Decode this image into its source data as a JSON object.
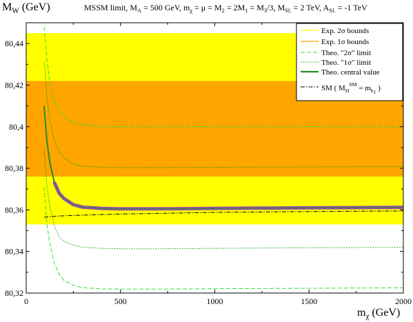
{
  "chart_data": {
    "type": "line",
    "title": "MSSM limit, M_A = 500 GeV, m_χ = μ = M_2 = 2M_1 = M_3/3, M_Sf. = 2 TeV, A_Sf. = -1 TeV",
    "title_parts": {
      "prefix": "MSSM limit, M",
      "ma_sub": "A",
      "ma_val": " = 500 GeV, m",
      "chi_sub": "χ",
      "mid": " = μ = M",
      "m2_sub": "2",
      "m2_val": " = 2M",
      "m1_sub": "1",
      "m1_val": " = M",
      "m3_sub": "3",
      "m3_val": "/3, M",
      "msf_sub": "Sf.",
      "msf_val": " = 2 TeV, A",
      "asf_sub": "Sf.",
      "asf_val": " = -1 TeV"
    },
    "ylabel": "M_W (GeV)",
    "ylabel_parts": {
      "main": "M",
      "sub": "W",
      "unit": " (GeV)"
    },
    "xlabel": "m_χ (GeV)",
    "xlabel_parts": {
      "main": "m",
      "sub": "χ",
      "unit": " (GeV)"
    },
    "xlim": [
      0,
      2000
    ],
    "ylim": [
      80.32,
      80.45
    ],
    "xticks": [
      0,
      500,
      1000,
      1500,
      2000
    ],
    "xtick_labels": [
      "0",
      "500",
      "1000",
      "1500",
      "2000"
    ],
    "yticks": [
      80.32,
      80.34,
      80.36,
      80.38,
      80.4,
      80.42,
      80.44
    ],
    "ytick_labels": [
      "80,32",
      "80,34",
      "80,36",
      "80,38",
      "80,4",
      "80,42",
      "80,44"
    ],
    "grid": false,
    "legend_position": "top-right",
    "bands": {
      "exp_2sigma": [
        80.353,
        80.445
      ],
      "exp_1sigma": [
        80.376,
        80.422
      ]
    },
    "legend": [
      {
        "key": "exp2",
        "label": "Exp. 2σ bounds"
      },
      {
        "key": "exp1",
        "label": "Exp. 1σ bounds"
      },
      {
        "key": "theo2",
        "label": "Theo. \"2σ\" limit"
      },
      {
        "key": "theo1",
        "label": "Theo. \"1σ\" limit"
      },
      {
        "key": "central",
        "label": "Theo. central value"
      },
      {
        "key": "sm",
        "label_main": "SM ( M",
        "label_sub_h": "H",
        "label_sup": "SM",
        "label_mid": " = m",
        "label_sub_h1": "h",
        "label_sub_1": "1",
        "label_end": " )"
      }
    ],
    "colors": {
      "exp2": "#ffff00",
      "exp1": "#ffa500",
      "theo2": "#33dd33",
      "theo1": "#009900",
      "central": "#228b22",
      "central_band": "#9a50a8",
      "sm": "#000000"
    },
    "series": [
      {
        "key": "theo2_upper",
        "x": [
          95,
          100,
          110,
          125,
          150,
          175,
          200,
          250,
          300,
          400,
          500,
          700,
          1000,
          1500,
          2000
        ],
        "y": [
          80.448,
          80.443,
          80.432,
          80.421,
          80.412,
          80.408,
          80.405,
          80.402,
          80.401,
          80.4,
          80.4,
          80.4,
          80.4,
          80.4,
          80.4
        ]
      },
      {
        "key": "theo1_upper",
        "x": [
          95,
          100,
          110,
          125,
          150,
          175,
          200,
          250,
          300,
          400,
          500,
          700,
          1000,
          1500,
          2000
        ],
        "y": [
          80.431,
          80.427,
          80.414,
          80.403,
          80.393,
          80.388,
          80.385,
          80.382,
          80.381,
          80.3805,
          80.3803,
          80.3803,
          80.3805,
          80.3807,
          80.3808
        ]
      },
      {
        "key": "central",
        "x": [
          95,
          100,
          110,
          125,
          150,
          175,
          200,
          250,
          300,
          400,
          500,
          700,
          1000,
          1500,
          2000
        ],
        "y": [
          80.41,
          80.404,
          80.393,
          80.383,
          80.373,
          80.368,
          80.3655,
          80.3625,
          80.3613,
          80.3607,
          80.3605,
          80.3605,
          80.3607,
          80.361,
          80.3612
        ]
      },
      {
        "key": "theo1_lower",
        "x": [
          95,
          100,
          110,
          125,
          150,
          175,
          200,
          250,
          300,
          400,
          500,
          700,
          1000,
          1500,
          2000
        ],
        "y": [
          80.389,
          80.383,
          80.371,
          80.362,
          80.352,
          80.347,
          80.345,
          80.343,
          80.342,
          80.3415,
          80.3413,
          80.3413,
          80.3415,
          80.3418,
          80.342
        ]
      },
      {
        "key": "theo2_lower",
        "x": [
          95,
          100,
          110,
          125,
          150,
          175,
          200,
          250,
          300,
          400,
          500,
          700,
          1000,
          1500,
          2000
        ],
        "y": [
          80.371,
          80.364,
          80.353,
          80.344,
          80.334,
          80.329,
          80.326,
          80.3237,
          80.3226,
          80.322,
          80.3219,
          80.3219,
          80.3221,
          80.3223,
          80.3225
        ]
      },
      {
        "key": "sm",
        "x": [
          95,
          200,
          500,
          1000,
          1500,
          2000
        ],
        "y": [
          80.3565,
          80.3572,
          80.358,
          80.3588,
          80.3592,
          80.3595
        ]
      }
    ]
  }
}
